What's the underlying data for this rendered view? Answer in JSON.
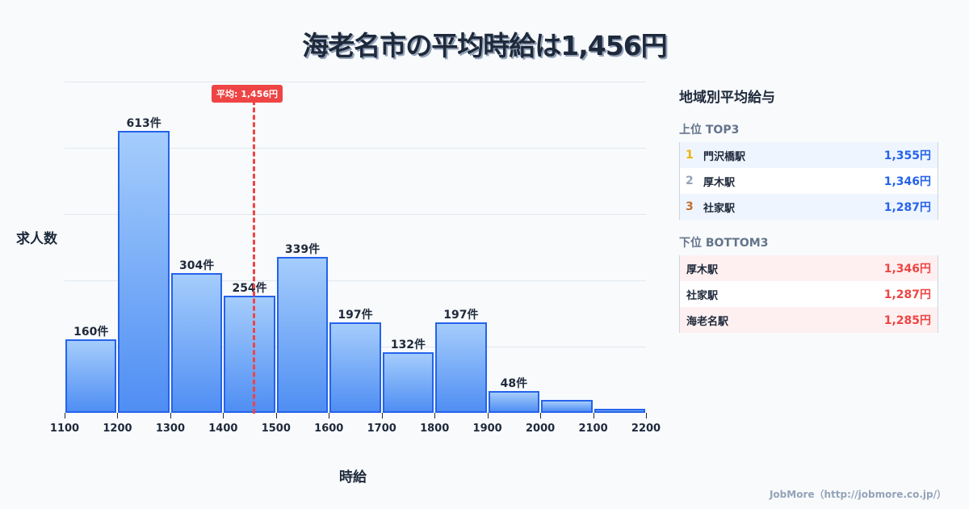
{
  "title": "海老名市の平均時給は1,456円",
  "chart_data": {
    "type": "bar",
    "title": "海老名市の平均時給は1,456円",
    "xlabel": "時給",
    "ylabel": "求人数",
    "bins": [
      1100,
      1200,
      1300,
      1400,
      1500,
      1600,
      1700,
      1800,
      1900,
      2000,
      2100,
      2200
    ],
    "categories": [
      "1100-1200",
      "1200-1300",
      "1300-1400",
      "1400-1500",
      "1500-1600",
      "1600-1700",
      "1700-1800",
      "1800-1900",
      "1900-2000",
      "2000-2100",
      "2100-2200"
    ],
    "values": [
      160,
      613,
      304,
      254,
      339,
      197,
      132,
      197,
      48,
      28,
      9
    ],
    "labels": [
      "160件",
      "613件",
      "304件",
      "254件",
      "339件",
      "197件",
      "132件",
      "197件",
      "48件",
      "",
      ""
    ],
    "xticks": [
      "1100",
      "1200",
      "1300",
      "1400",
      "1500",
      "1600",
      "1700",
      "1800",
      "1900",
      "2000",
      "2100",
      "2200"
    ],
    "ylim": [
      0,
      720
    ],
    "grid": true,
    "annotation": {
      "label": "平均: 1,456円",
      "x": 1456
    }
  },
  "panel": {
    "title": "地域別平均給与",
    "top_label": "上位 TOP3",
    "top": [
      {
        "rank": "1",
        "name": "門沢橋駅",
        "value": "1,355円",
        "rank_color": "#eab308"
      },
      {
        "rank": "2",
        "name": "厚木駅",
        "value": "1,346円",
        "rank_color": "#94a3b8"
      },
      {
        "rank": "3",
        "name": "社家駅",
        "value": "1,287円",
        "rank_color": "#c2702b"
      }
    ],
    "bottom_label": "下位 BOTTOM3",
    "bottom": [
      {
        "name": "厚木駅",
        "value": "1,346円"
      },
      {
        "name": "社家駅",
        "value": "1,287円"
      },
      {
        "name": "海老名駅",
        "value": "1,285円"
      }
    ]
  },
  "footer": "JobMore（http://jobmore.co.jp/）"
}
